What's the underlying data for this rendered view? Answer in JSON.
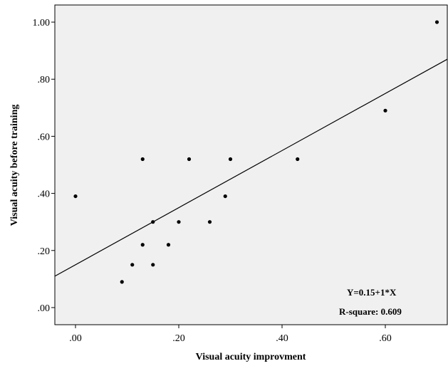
{
  "chart_data": {
    "type": "scatter",
    "title": "",
    "xlabel": "Visual acuity improvment",
    "ylabel": "Visual acuity before training",
    "xlim": [
      -0.04,
      0.72
    ],
    "ylim": [
      -0.06,
      1.06
    ],
    "x_ticks": [
      0,
      0.2,
      0.4,
      0.6
    ],
    "x_tick_labels": [
      ".00",
      ".20",
      ".40",
      ".60"
    ],
    "y_ticks": [
      0,
      0.2,
      0.4,
      0.6,
      0.8,
      1.0
    ],
    "y_tick_labels": [
      ".00",
      ".20",
      ".40",
      ".60",
      ".80",
      "1.00"
    ],
    "grid": false,
    "plot_background": "#f0f0f0",
    "point_color": "#000000",
    "points": [
      {
        "x": 0.0,
        "y": 0.39
      },
      {
        "x": 0.09,
        "y": 0.09
      },
      {
        "x": 0.11,
        "y": 0.15
      },
      {
        "x": 0.13,
        "y": 0.22
      },
      {
        "x": 0.13,
        "y": 0.52
      },
      {
        "x": 0.15,
        "y": 0.15
      },
      {
        "x": 0.15,
        "y": 0.3
      },
      {
        "x": 0.18,
        "y": 0.22
      },
      {
        "x": 0.2,
        "y": 0.3
      },
      {
        "x": 0.22,
        "y": 0.52
      },
      {
        "x": 0.26,
        "y": 0.3
      },
      {
        "x": 0.29,
        "y": 0.39
      },
      {
        "x": 0.3,
        "y": 0.52
      },
      {
        "x": 0.43,
        "y": 0.52
      },
      {
        "x": 0.6,
        "y": 0.69
      },
      {
        "x": 0.7,
        "y": 1.0
      }
    ],
    "fit_line": {
      "intercept": 0.15,
      "slope": 1.0
    },
    "annotations": {
      "equation": "Y=0.15+1*X",
      "r_square": "R-square: 0.609"
    }
  }
}
